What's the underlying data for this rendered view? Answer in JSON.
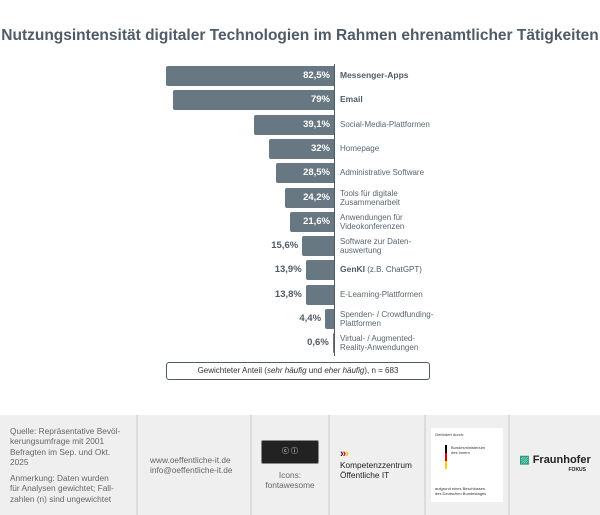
{
  "chart_data": {
    "type": "bar",
    "orientation": "horizontal",
    "title": "Nutzungsintensität digitaler Technologien im Rahmen ehrenamtlicher Tätigkeiten",
    "categories": [
      "Messenger-Apps",
      "Email",
      "Social-Media-Plattformen",
      "Homepage",
      "Administrative Software",
      "Tools für digitale Zusammenarbeit",
      "Anwendungen für Videokonferenzen",
      "Software zur Datenauswertung",
      "GenKI (z.B. ChatGPT)",
      "E-Learning-Plattformen",
      "Spenden- / Crowdfunding-Plattformen",
      "Virtual- / Augmented-Reality-Anwendungen"
    ],
    "category_labels": [
      [
        "Messenger-Apps"
      ],
      [
        "Email"
      ],
      [
        "Social-Media-Plattformen"
      ],
      [
        "Homepage"
      ],
      [
        "Administrative Software"
      ],
      [
        "Tools für digitale",
        "Zusammenarbeit"
      ],
      [
        "Anwendungen für",
        "Videokonferenzen"
      ],
      [
        "Software zur Daten-",
        "auswertung"
      ],
      [
        "GenKI",
        " (z.B. ChatGPT)"
      ],
      [
        "E-Learning-Plattformen"
      ],
      [
        "Spenden- / Crowdfunding-",
        "Plattformen"
      ],
      [
        "Virtual- / Augmented-",
        "Reality-Anwendungen"
      ]
    ],
    "values": [
      82.5,
      79,
      39.1,
      32,
      28.5,
      24.2,
      21.6,
      15.6,
      13.9,
      13.8,
      4.4,
      0.6
    ],
    "value_labels": [
      "82,5%",
      "79%",
      "39,1%",
      "32%",
      "28,5%",
      "24,2%",
      "21,6%",
      "15,6%",
      "13,9%",
      "13,8%",
      "4,4%",
      "0,6%"
    ],
    "bold": [
      true,
      true,
      false,
      false,
      false,
      false,
      false,
      false,
      true,
      false,
      false,
      false
    ],
    "xlim": [
      0,
      100
    ],
    "xlabel": "Gewichteter Anteil (sehr häufig und eher häufig), n = 683",
    "bar_color": "#677883"
  },
  "legend": {
    "pre": "Gewichteter Anteil (",
    "i1": "sehr häufig",
    "mid": " und ",
    "i2": "eher häufig",
    "post": "), n = 683"
  },
  "footer": {
    "source": [
      "Quelle: Repräsentative Bevöl-",
      "kerungsumfrage mit 2001",
      "Befragten im Sep. und Okt.",
      "2025"
    ],
    "note": [
      "Anmerkung: Daten wurden",
      "für Analysen gewichtet; Fall-",
      "zahlen (n) sind ungewichtet"
    ],
    "web": "www.oeffentliche-it.de",
    "email": "info@oeffentliche-it.de",
    "icons_label": "Icons:",
    "icons_source": "fontawesome",
    "kompetenz": [
      "Kompetenzzentrum",
      "Öffentliche IT"
    ],
    "bmi_top": "Gefördert durch:",
    "bmi_name": [
      "Bundesministerium",
      "des Innern"
    ],
    "bmi_bottom": [
      "aufgrund eines Beschlusses",
      "des Deutschen Bundestages"
    ],
    "fraunhofer": "Fraunhofer",
    "fokus": "FOKUS"
  }
}
